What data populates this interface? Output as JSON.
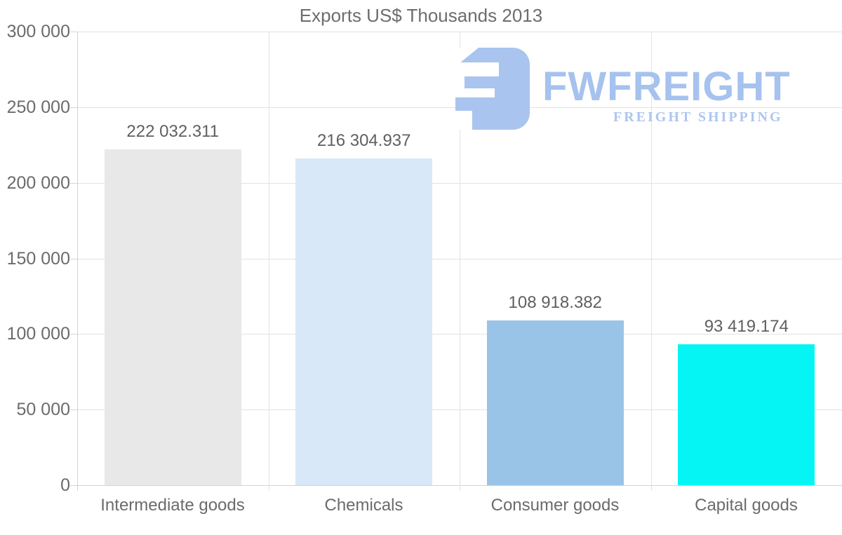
{
  "title": "Exports US$ Thousands 2013",
  "watermark": {
    "brand": "FWFREIGHT",
    "tagline": "FREIGHT SHIPPING",
    "icon": "fwfreight-logo-icon",
    "brand_color": "#a6c2ee",
    "tagline_color": "#aec6ef",
    "icon_color": "#a9c4ee"
  },
  "colors": {
    "background": "#ffffff",
    "gridline": "#e2e2e2",
    "axis": "#d4d4d4",
    "axis_text": "#6b6b6b",
    "value_text": "#5f5f5f",
    "title_text": "#6d6d6d"
  },
  "chart_data": {
    "type": "bar",
    "title": "Exports US$ Thousands 2013",
    "categories": [
      "Intermediate goods",
      "Chemicals",
      "Consumer goods",
      "Capital goods"
    ],
    "values": [
      222032.311,
      216304.937,
      108918.382,
      93419.174
    ],
    "value_labels": [
      "222 032.311",
      "216 304.937",
      "108 918.382",
      "93 419.174"
    ],
    "bar_colors": [
      "#e8e8e8",
      "#d9e8f8",
      "#99c4e8",
      "#05f5f5"
    ],
    "xlabel": "",
    "ylabel": "",
    "ylim": [
      0,
      300000
    ],
    "ytick_step": 50000,
    "ytick_labels": [
      "0",
      "50 000",
      "100 000",
      "150 000",
      "200 000",
      "250 000",
      "300 000"
    ],
    "grid": true,
    "legend": "none"
  }
}
